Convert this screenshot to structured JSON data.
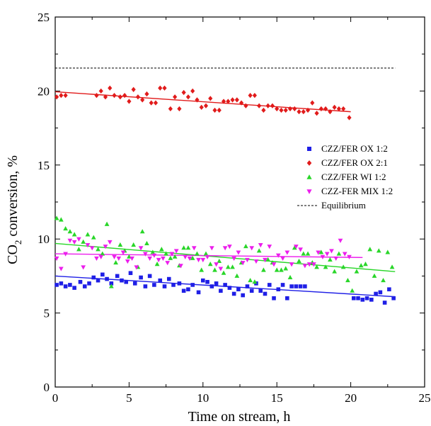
{
  "chart_data": {
    "type": "scatter",
    "title": "",
    "xlabel": "Time on stream, h",
    "ylabel": {
      "prefix": "CO",
      "sub": "2",
      "suffix": " conversion, %"
    },
    "xlim": [
      0,
      25
    ],
    "ylim": [
      0,
      25
    ],
    "xticks": [
      0,
      5,
      10,
      15,
      20,
      25
    ],
    "yticks": [
      0,
      5,
      10,
      15,
      20,
      25
    ],
    "grid": false,
    "legend_position": "right",
    "series": [
      {
        "name": "CZZ/FER OX 1:2",
        "marker": "square",
        "color": "#1f1fe6",
        "x": [
          0.1,
          0.4,
          0.7,
          1.0,
          1.3,
          1.7,
          2.0,
          2.3,
          2.6,
          2.9,
          3.2,
          3.5,
          3.8,
          4.2,
          4.5,
          4.8,
          5.1,
          5.4,
          5.8,
          6.1,
          6.4,
          6.7,
          7.1,
          7.4,
          7.7,
          8.0,
          8.4,
          8.7,
          9.0,
          9.3,
          9.7,
          10.0,
          10.3,
          10.6,
          10.9,
          11.2,
          11.5,
          11.8,
          12.1,
          12.4,
          12.7,
          13.0,
          13.3,
          13.6,
          13.9,
          14.2,
          14.5,
          14.8,
          15.1,
          15.4,
          15.7,
          16.0,
          16.3,
          16.6,
          16.9,
          20.2,
          20.5,
          20.8,
          21.1,
          21.4,
          21.7,
          22.0,
          22.3,
          22.6,
          22.9
        ],
        "y": [
          6.9,
          7.0,
          6.8,
          6.9,
          6.7,
          7.1,
          6.8,
          7.0,
          7.4,
          7.2,
          7.6,
          7.3,
          7.0,
          7.5,
          7.2,
          7.1,
          7.7,
          7.0,
          7.4,
          6.8,
          7.5,
          6.9,
          7.2,
          6.8,
          7.3,
          6.9,
          7.0,
          6.5,
          6.6,
          6.9,
          6.4,
          7.2,
          7.1,
          6.8,
          7.0,
          6.5,
          6.9,
          6.7,
          6.3,
          6.6,
          6.2,
          6.8,
          6.5,
          7.0,
          6.5,
          6.3,
          6.9,
          6.0,
          6.6,
          6.9,
          6.0,
          6.8,
          6.8,
          6.8,
          6.8,
          6.0,
          6.0,
          5.9,
          6.0,
          5.9,
          6.3,
          6.4,
          5.7,
          6.6,
          6.0
        ],
        "fit": [
          [
            0,
            7.5
          ],
          [
            23,
            6.1
          ]
        ]
      },
      {
        "name": "CZZ/FER OX 2:1",
        "marker": "diamond",
        "color": "#e11b1b",
        "x": [
          0.1,
          0.4,
          0.7,
          2.8,
          3.1,
          3.4,
          3.7,
          4.0,
          4.4,
          4.7,
          5.0,
          5.3,
          5.6,
          5.9,
          6.2,
          6.5,
          6.8,
          7.1,
          7.4,
          7.8,
          8.1,
          8.4,
          8.7,
          9.0,
          9.3,
          9.6,
          9.9,
          10.2,
          10.5,
          10.8,
          11.1,
          11.4,
          11.7,
          12.0,
          12.3,
          12.6,
          12.9,
          13.2,
          13.5,
          13.8,
          14.1,
          14.4,
          14.7,
          15.0,
          15.3,
          15.6,
          15.9,
          16.2,
          16.5,
          16.8,
          17.1,
          17.4,
          17.7,
          18.0,
          18.3,
          18.6,
          18.9,
          19.2,
          19.5,
          19.9
        ],
        "y": [
          19.6,
          19.7,
          19.7,
          19.7,
          20.0,
          19.6,
          20.2,
          19.7,
          19.6,
          19.7,
          19.3,
          20.1,
          19.6,
          19.4,
          19.8,
          19.2,
          19.2,
          20.2,
          20.2,
          18.8,
          19.6,
          18.8,
          19.9,
          19.6,
          20.0,
          19.4,
          18.9,
          19.0,
          19.5,
          18.7,
          18.7,
          19.3,
          19.3,
          19.4,
          19.4,
          19.2,
          19.0,
          19.7,
          19.7,
          19.0,
          18.7,
          19.0,
          19.0,
          18.8,
          18.7,
          18.7,
          18.8,
          18.8,
          18.6,
          18.6,
          18.7,
          19.2,
          18.5,
          18.8,
          18.8,
          18.6,
          18.9,
          18.8,
          18.8,
          18.2
        ],
        "fit": [
          [
            0,
            19.95
          ],
          [
            20,
            18.6
          ]
        ]
      },
      {
        "name": "CZZ/FER WI 1:2",
        "marker": "triangle-up",
        "color": "#29d629",
        "x": [
          0.1,
          0.4,
          0.7,
          1.0,
          1.3,
          1.6,
          1.9,
          2.2,
          2.6,
          2.9,
          3.2,
          3.5,
          3.8,
          4.1,
          4.4,
          4.7,
          5.0,
          5.3,
          5.6,
          5.9,
          6.2,
          6.6,
          6.9,
          7.2,
          7.5,
          7.8,
          8.1,
          8.4,
          8.7,
          9.0,
          9.3,
          9.6,
          9.9,
          10.2,
          10.5,
          10.8,
          11.1,
          11.4,
          11.7,
          12.0,
          12.3,
          12.6,
          12.9,
          13.2,
          13.5,
          13.8,
          14.1,
          14.4,
          14.7,
          15.0,
          15.3,
          15.6,
          15.9,
          16.2,
          16.5,
          16.8,
          17.1,
          17.4,
          17.7,
          18.0,
          18.3,
          18.6,
          18.9,
          19.2,
          19.5,
          19.8,
          20.1,
          20.4,
          20.7,
          21.0,
          21.3,
          21.6,
          21.9,
          22.2,
          22.5,
          22.8
        ],
        "y": [
          11.4,
          11.3,
          10.7,
          10.5,
          10.3,
          9.3,
          9.8,
          10.3,
          10.1,
          9.3,
          9.0,
          11.0,
          6.8,
          8.4,
          9.6,
          9.2,
          8.8,
          9.6,
          8.1,
          10.5,
          9.7,
          9.1,
          8.3,
          9.3,
          9.0,
          8.7,
          8.8,
          8.2,
          9.4,
          9.4,
          8.7,
          9.0,
          7.9,
          9.0,
          8.3,
          7.9,
          8.5,
          7.7,
          8.1,
          8.1,
          7.5,
          8.4,
          9.5,
          7.2,
          7.1,
          9.2,
          7.9,
          8.6,
          8.4,
          7.9,
          7.9,
          8.0,
          7.4,
          9.4,
          8.5,
          9.0,
          9.0,
          8.4,
          8.1,
          9.1,
          8.1,
          8.6,
          7.8,
          9.0,
          8.1,
          7.2,
          6.5,
          7.8,
          8.2,
          8.3,
          9.3,
          7.5,
          9.2,
          7.2,
          9.1,
          8.1
        ],
        "fit": [
          [
            0,
            9.7
          ],
          [
            23,
            7.8
          ]
        ]
      },
      {
        "name": "CZZ-FER MIX 1:2",
        "marker": "triangle-down",
        "color": "#ec1eec",
        "x": [
          0.1,
          0.4,
          0.7,
          1.0,
          1.3,
          1.6,
          1.9,
          2.2,
          2.5,
          2.8,
          3.1,
          3.4,
          3.7,
          4.0,
          4.3,
          4.6,
          4.9,
          5.2,
          5.5,
          5.8,
          6.1,
          6.4,
          6.7,
          7.0,
          7.3,
          7.6,
          7.9,
          8.2,
          8.5,
          8.8,
          9.1,
          9.4,
          9.7,
          10.0,
          10.3,
          10.6,
          10.9,
          11.2,
          11.5,
          11.8,
          12.1,
          12.4,
          12.7,
          13.0,
          13.3,
          13.6,
          13.9,
          14.2,
          14.5,
          14.8,
          15.1,
          15.4,
          15.7,
          16.0,
          16.3,
          16.6,
          16.9,
          17.2,
          17.5,
          17.8,
          18.1,
          18.4,
          18.7,
          19.0,
          19.3,
          19.6,
          19.9
        ],
        "y": [
          8.7,
          8.0,
          9.0,
          9.9,
          9.8,
          10.0,
          8.1,
          9.6,
          9.4,
          8.7,
          8.8,
          9.5,
          9.8,
          8.8,
          8.7,
          9.1,
          8.5,
          8.7,
          8.1,
          9.4,
          9.0,
          8.7,
          8.9,
          8.6,
          8.7,
          8.4,
          9.0,
          9.2,
          8.2,
          8.8,
          8.7,
          9.4,
          8.6,
          8.6,
          8.8,
          9.4,
          8.3,
          8.0,
          9.4,
          9.5,
          8.7,
          9.1,
          8.4,
          8.6,
          9.4,
          8.5,
          9.6,
          8.6,
          9.5,
          8.3,
          8.9,
          8.7,
          9.1,
          8.3,
          9.5,
          9.3,
          8.2,
          8.3,
          8.3,
          9.1,
          8.8,
          9.0,
          9.2,
          8.7,
          9.9,
          9.0,
          8.8
        ],
        "fit": [
          [
            0,
            9.0
          ],
          [
            20.8,
            8.75
          ]
        ]
      }
    ],
    "reference_lines": [
      {
        "name": "Equilibrium",
        "style": "dashed",
        "color": "#000000",
        "y": 21.55,
        "x": [
          0,
          23
        ]
      }
    ]
  }
}
